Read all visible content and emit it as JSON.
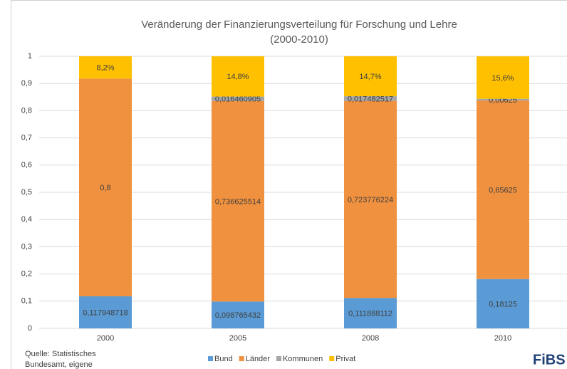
{
  "chart_data": {
    "type": "stacked_bar",
    "title": "Veränderung der Finanzierungsverteilung für Forschung und Lehre",
    "subtitle": "(2000-2010)",
    "categories": [
      "2000",
      "2005",
      "2008",
      "2010"
    ],
    "series": [
      {
        "name": "Bund",
        "color": "#5b9bd5",
        "values": [
          0.117948718,
          0.098765432,
          0.111888112,
          0.18125
        ],
        "value_labels": [
          "0,117948718",
          "0,098765432",
          "0,111888112",
          "0,18125"
        ]
      },
      {
        "name": "Länder",
        "color": "#f0913f",
        "values": [
          0.8,
          0.736625514,
          0.723776224,
          0.65625
        ],
        "value_labels": [
          "0,8",
          "0,736625514",
          "0,723776224",
          "0,65625"
        ]
      },
      {
        "name": "Kommunen",
        "color": "#a5a5a5",
        "values": [
          null,
          0.016460905,
          0.017482517,
          0.00625
        ],
        "value_labels": [
          null,
          "0,016460905",
          "0,017482517",
          "0,00625"
        ]
      },
      {
        "name": "Privat",
        "color": "#ffc000",
        "values": [
          0.082,
          0.148,
          0.147,
          0.156
        ],
        "value_labels": [
          "8,2%",
          "14,8%",
          "14,7%",
          "15,6%"
        ]
      }
    ],
    "ylim": [
      0,
      1
    ],
    "yticks": [
      0,
      {
        "value": 0.1,
        "label": "0,1"
      },
      {
        "value": 0.2,
        "label": "0,2"
      },
      {
        "value": 0.3,
        "label": "0,3"
      },
      {
        "value": 0.4,
        "label": "0,4"
      },
      {
        "value": 0.5,
        "label": "0,5"
      },
      {
        "value": 0.6,
        "label": "0,6"
      },
      {
        "value": 0.7,
        "label": "0,7"
      },
      {
        "value": 0.8,
        "label": "0,8"
      },
      {
        "value": 0.9,
        "label": "0,9"
      },
      1
    ],
    "grid": true,
    "legend": "bottom",
    "source": [
      "Quelle: Statistisches",
      "Bundesamt, eigene"
    ],
    "logo": "FiBS"
  }
}
